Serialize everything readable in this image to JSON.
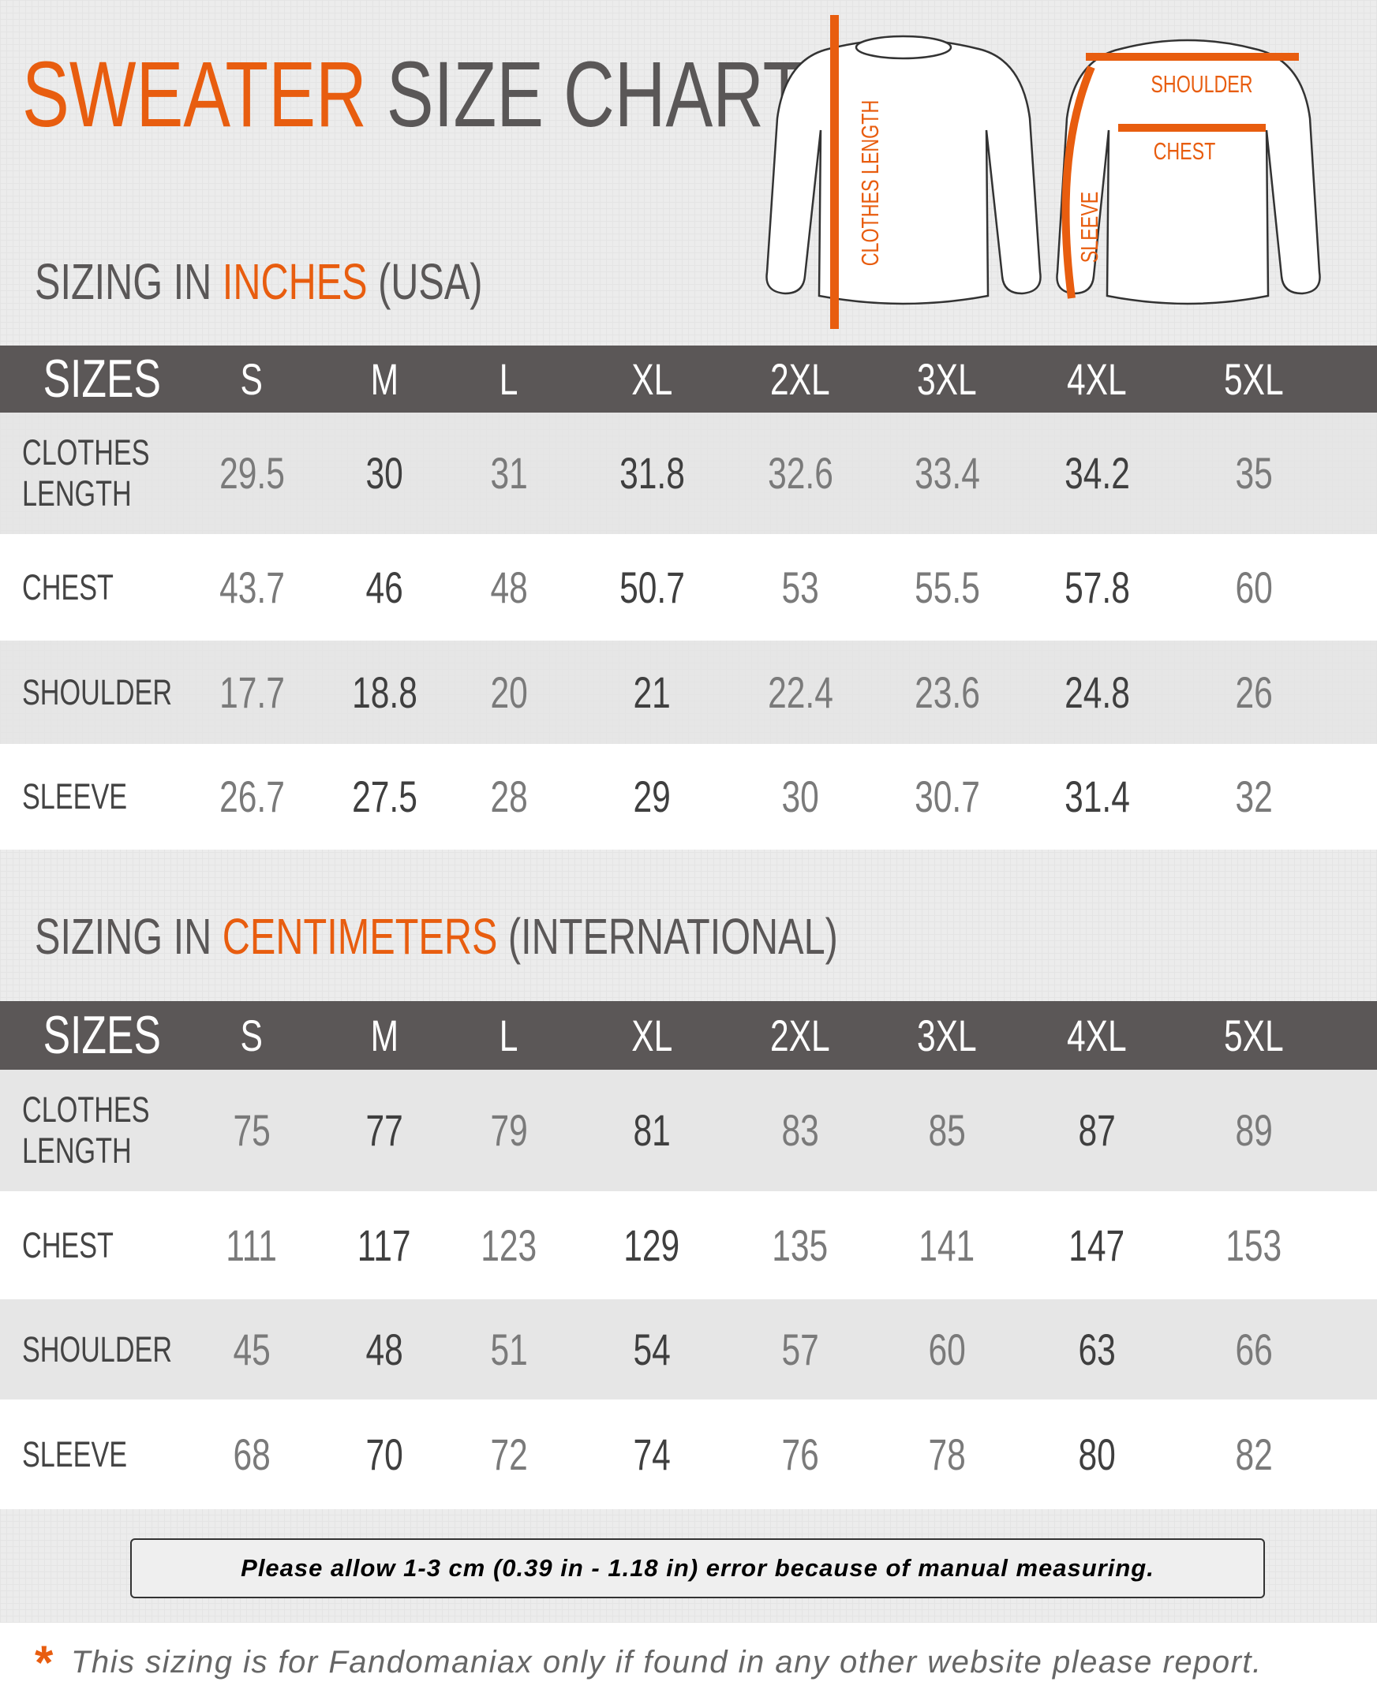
{
  "header": {
    "title_accent": "SWEATER",
    "title_rest": "SIZE CHART"
  },
  "diagram": {
    "labels": [
      "CLOTHES LENGTH",
      "SHOULDER",
      "CHEST",
      "SLEEVE"
    ]
  },
  "tables": [
    {
      "heading": {
        "prefix": "SIZING IN",
        "accent": "INCHES",
        "suffix": "(USA)"
      },
      "columns": [
        "SIZES",
        "S",
        "M",
        "L",
        "XL",
        "2XL",
        "3XL",
        "4XL",
        "5XL"
      ],
      "rows": [
        [
          "CLOTHES LENGTH",
          29.5,
          30,
          31,
          31.8,
          32.6,
          33.4,
          34.2,
          35
        ],
        [
          "CHEST",
          43.7,
          46,
          48,
          50.7,
          53,
          55.5,
          57.8,
          60
        ],
        [
          "SHOULDER",
          17.7,
          18.8,
          20,
          21,
          22.4,
          23.6,
          24.8,
          26
        ],
        [
          "SLEEVE",
          26.7,
          27.5,
          28,
          29,
          30,
          30.7,
          31.4,
          32
        ]
      ]
    },
    {
      "heading": {
        "prefix": "SIZING IN",
        "accent": "CENTIMETERS",
        "suffix": "(INTERNATIONAL)"
      },
      "columns": [
        "SIZES",
        "S",
        "M",
        "L",
        "XL",
        "2XL",
        "3XL",
        "4XL",
        "5XL"
      ],
      "rows": [
        [
          "CLOTHES LENGTH",
          75,
          77,
          79,
          81,
          83,
          85,
          87,
          89
        ],
        [
          "CHEST",
          111,
          117,
          123,
          129,
          135,
          141,
          147,
          153
        ],
        [
          "SHOULDER",
          45,
          48,
          51,
          54,
          57,
          60,
          63,
          66
        ],
        [
          "SLEEVE",
          68,
          70,
          72,
          74,
          76,
          78,
          80,
          82
        ]
      ]
    }
  ],
  "note": "Please allow 1-3 cm (0.39 in - 1.18 in) error because of manual measuring.",
  "footer": {
    "mark": "*",
    "text": "This sizing is for Fandomaniax only if found in any other website please report."
  }
}
